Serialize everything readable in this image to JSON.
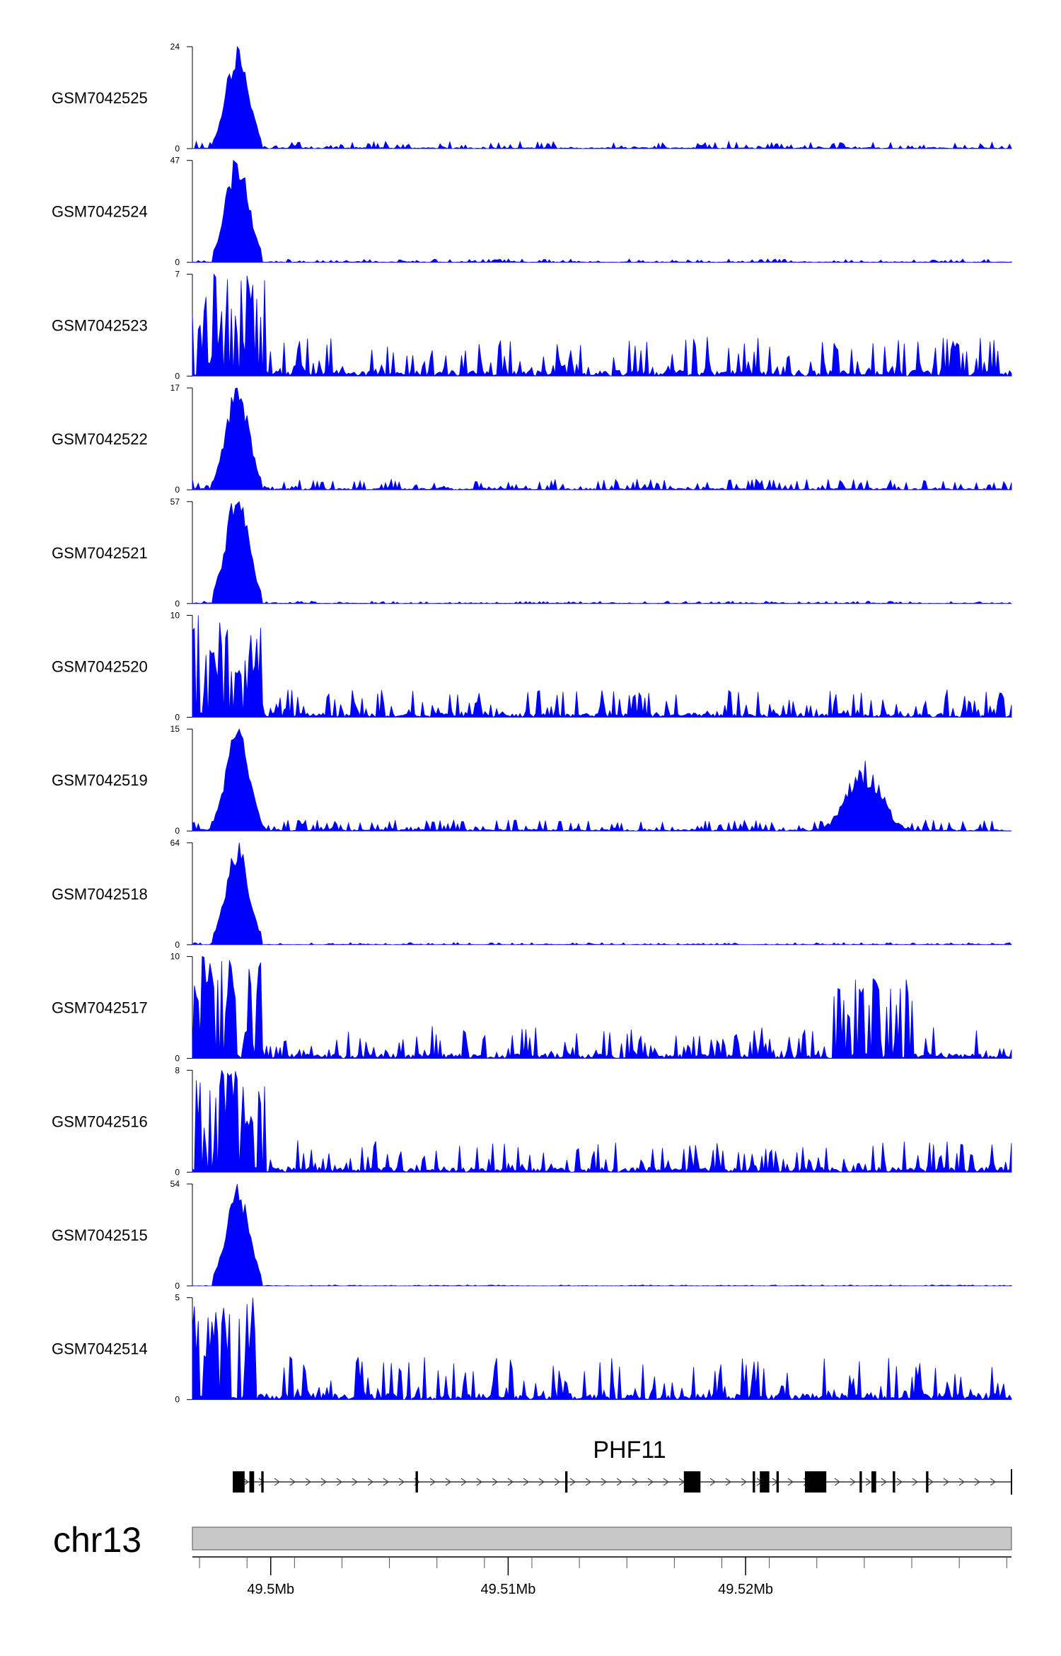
{
  "chart_data": {
    "type": "area",
    "color": "#0000ff",
    "x_unit": "Mb",
    "xlim": [
      49.4967,
      49.5312
    ],
    "tracks": [
      {
        "name": "GSM7042525",
        "ymax": 24,
        "ymin": 0,
        "profile": "peak",
        "baseline": 0.07
      },
      {
        "name": "GSM7042524",
        "ymax": 47,
        "ymin": 0,
        "profile": "peak",
        "baseline": 0.03
      },
      {
        "name": "GSM7042523",
        "ymax": 7,
        "ymin": 0,
        "profile": "noise",
        "baseline": 0.35
      },
      {
        "name": "GSM7042522",
        "ymax": 17,
        "ymin": 0,
        "profile": "peak",
        "baseline": 0.1
      },
      {
        "name": "GSM7042521",
        "ymax": 57,
        "ymin": 0,
        "profile": "peak",
        "baseline": 0.02
      },
      {
        "name": "GSM7042520",
        "ymax": 10,
        "ymin": 0,
        "profile": "noise",
        "baseline": 0.25
      },
      {
        "name": "GSM7042519",
        "ymax": 15,
        "ymin": 0,
        "profile": "peak2",
        "baseline": 0.1
      },
      {
        "name": "GSM7042518",
        "ymax": 64,
        "ymin": 0,
        "profile": "peak",
        "baseline": 0.02
      },
      {
        "name": "GSM7042517",
        "ymax": 10,
        "ymin": 0,
        "profile": "noise2",
        "baseline": 0.3
      },
      {
        "name": "GSM7042516",
        "ymax": 8,
        "ymin": 0,
        "profile": "noise",
        "baseline": 0.3
      },
      {
        "name": "GSM7042515",
        "ymax": 54,
        "ymin": 0,
        "profile": "peak",
        "baseline": 0.01
      },
      {
        "name": "GSM7042514",
        "ymax": 5,
        "ymin": 0,
        "profile": "noise",
        "baseline": 0.4
      }
    ],
    "gene": {
      "name": "PHF11",
      "strand": "+",
      "start": 49.4984,
      "end": 49.5312,
      "exons": [
        {
          "start": 49.4984,
          "end": 49.4989
        },
        {
          "start": 49.4991,
          "end": 49.4993
        },
        {
          "start": 49.4996,
          "end": 49.4997
        },
        {
          "start": 49.5061,
          "end": 49.5062
        },
        {
          "start": 49.5124,
          "end": 49.5125
        },
        {
          "start": 49.5174,
          "end": 49.5181
        },
        {
          "start": 49.5203,
          "end": 49.5204
        },
        {
          "start": 49.5206,
          "end": 49.521
        },
        {
          "start": 49.5213,
          "end": 49.5214
        },
        {
          "start": 49.5225,
          "end": 49.5234
        },
        {
          "start": 49.5248,
          "end": 49.5249
        },
        {
          "start": 49.5253,
          "end": 49.5255
        },
        {
          "start": 49.5262,
          "end": 49.5263
        },
        {
          "start": 49.5276,
          "end": 49.5277
        }
      ]
    },
    "chromosome": "chr13",
    "axis": {
      "major_ticks": [
        49.5,
        49.51,
        49.52
      ],
      "major_labels": [
        "49.5Mb",
        "49.51Mb",
        "49.52Mb"
      ],
      "minor_ticks": [
        49.497,
        49.499,
        49.501,
        49.503,
        49.505,
        49.507,
        49.509,
        49.511,
        49.513,
        49.515,
        49.517,
        49.519,
        49.521,
        49.523,
        49.525,
        49.527,
        49.529,
        49.531
      ]
    }
  }
}
